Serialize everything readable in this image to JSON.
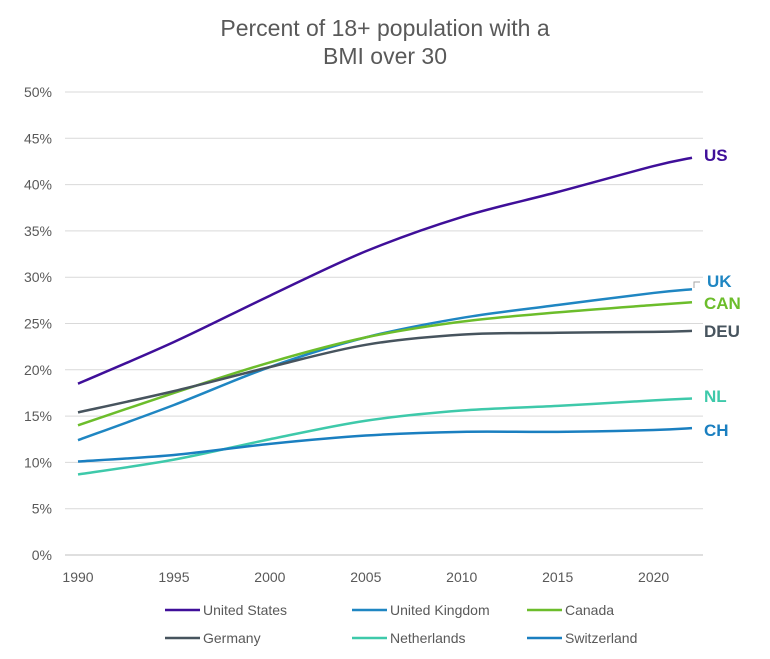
{
  "chart_data": {
    "type": "line",
    "title_lines": [
      "Percent of 18+ population with a",
      "BMI over 30"
    ],
    "xlabel": "",
    "ylabel": "",
    "xlim": [
      1990,
      2022
    ],
    "ylim": [
      0,
      50
    ],
    "x_ticks": [
      1990,
      1995,
      2000,
      2005,
      2010,
      2015,
      2020
    ],
    "y_ticks": [
      "0%",
      "5%",
      "10%",
      "15%",
      "20%",
      "25%",
      "30%",
      "35%",
      "40%",
      "45%",
      "50%"
    ],
    "grid": "horizontal",
    "legend_placement": "bottom",
    "x": [
      1990,
      1995,
      2000,
      2005,
      2010,
      2015,
      2020,
      2022
    ],
    "series": [
      {
        "name": "United States",
        "label": "US",
        "color": "#3f0f99",
        "values": [
          18.5,
          23.0,
          28.0,
          32.8,
          36.5,
          39.2,
          42.0,
          42.9
        ]
      },
      {
        "name": "United Kingdom",
        "label": "UK",
        "color": "#1f86c2",
        "values": [
          12.4,
          16.2,
          20.3,
          23.5,
          25.6,
          27.0,
          28.3,
          28.7
        ]
      },
      {
        "name": "Canada",
        "label": "CAN",
        "color": "#6cbd2b",
        "values": [
          14.0,
          17.5,
          20.8,
          23.5,
          25.2,
          26.2,
          27.0,
          27.3
        ]
      },
      {
        "name": "Germany",
        "label": "DEU",
        "color": "#47545e",
        "values": [
          15.4,
          17.7,
          20.3,
          22.7,
          23.8,
          24.0,
          24.1,
          24.2
        ]
      },
      {
        "name": "Netherlands",
        "label": "NL",
        "color": "#3ec9aa",
        "values": [
          8.7,
          10.3,
          12.5,
          14.5,
          15.6,
          16.1,
          16.7,
          16.9
        ]
      },
      {
        "name": "Switzerland",
        "label": "CH",
        "color": "#1a7fc0",
        "values": [
          10.1,
          10.8,
          12.0,
          12.9,
          13.3,
          13.3,
          13.5,
          13.7
        ]
      }
    ]
  }
}
